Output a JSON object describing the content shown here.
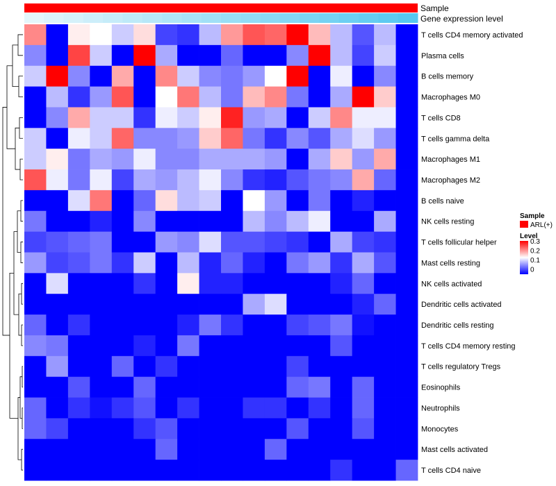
{
  "chart_data": {
    "type": "heatmap",
    "title": "",
    "annotations": {
      "sample_label": "Sample",
      "gene_expression_label": "Gene expression level",
      "sample_color": "#ff0000",
      "gene_expression_values": [
        0.05,
        0.1,
        0.15,
        0.2,
        0.25,
        0.3,
        0.35,
        0.4,
        0.45,
        0.5,
        0.55,
        0.6,
        0.65,
        0.7,
        0.75,
        0.8,
        0.85,
        0.9,
        0.95,
        1.0
      ]
    },
    "rows": [
      "T cells CD4 memory activated",
      "Plasma cells",
      "B cells memory",
      "Macrophages M0",
      "T cells CD8",
      "T cells gamma delta",
      "Macrophages M1",
      "Macrophages M2",
      "B cells naive",
      "NK cells resting",
      "T cells follicular helper",
      "Mast cells resting",
      "NK cells activated",
      "Dendritic cells activated",
      "Dendritic cells resting",
      "T cells CD4 memory resting",
      "T cells regulatory  Tregs",
      "Eosinophils",
      "Neutrophils",
      "Monocytes",
      "Mast cells activated",
      "T cells CD4 naive"
    ],
    "columns": 18,
    "values": [
      [
        0.22,
        0.0,
        0.16,
        0.15,
        0.12,
        0.17,
        0.04,
        0.03,
        0.11,
        0.21,
        0.25,
        0.24,
        0.3,
        0.19,
        0.11,
        0.05,
        0.11,
        0.0
      ],
      [
        0.08,
        0.0,
        0.26,
        0.12,
        0.0,
        0.3,
        0.1,
        0.0,
        0.0,
        0.06,
        0.0,
        0.0,
        0.08,
        0.3,
        0.11,
        0.04,
        0.12,
        0.0
      ],
      [
        0.12,
        0.3,
        0.08,
        0.0,
        0.2,
        0.0,
        0.22,
        0.12,
        0.08,
        0.07,
        0.09,
        0.15,
        0.3,
        0.0,
        0.14,
        0.0,
        0.08,
        0.0
      ],
      [
        0.0,
        0.11,
        0.03,
        0.09,
        0.25,
        0.0,
        0.15,
        0.23,
        0.11,
        0.07,
        0.19,
        0.22,
        0.07,
        0.0,
        0.1,
        0.3,
        0.18,
        0.0
      ],
      [
        0.0,
        0.08,
        0.2,
        0.12,
        0.12,
        0.03,
        0.14,
        0.12,
        0.16,
        0.28,
        0.09,
        0.1,
        0.0,
        0.12,
        0.22,
        0.14,
        0.14,
        0.0
      ],
      [
        0.12,
        0.0,
        0.14,
        0.12,
        0.24,
        0.08,
        0.08,
        0.09,
        0.18,
        0.24,
        0.07,
        0.03,
        0.08,
        0.05,
        0.1,
        0.13,
        0.09,
        0.0
      ],
      [
        0.12,
        0.16,
        0.07,
        0.1,
        0.09,
        0.14,
        0.08,
        0.08,
        0.1,
        0.1,
        0.1,
        0.09,
        0.0,
        0.1,
        0.18,
        0.09,
        0.2,
        0.0
      ],
      [
        0.25,
        0.14,
        0.07,
        0.14,
        0.04,
        0.1,
        0.09,
        0.11,
        0.14,
        0.08,
        0.03,
        0.02,
        0.05,
        0.07,
        0.08,
        0.2,
        0.06,
        0.0
      ],
      [
        0.0,
        0.0,
        0.13,
        0.23,
        0.0,
        0.06,
        0.17,
        0.11,
        0.12,
        0.0,
        0.15,
        0.09,
        0.0,
        0.07,
        0.0,
        0.02,
        0.0,
        0.0
      ],
      [
        0.07,
        0.0,
        0.0,
        0.02,
        0.0,
        0.08,
        0.0,
        0.0,
        0.0,
        0.0,
        0.11,
        0.08,
        0.11,
        0.14,
        0.0,
        0.0,
        0.1,
        0.0
      ],
      [
        0.04,
        0.05,
        0.06,
        0.07,
        0.0,
        0.0,
        0.09,
        0.08,
        0.13,
        0.05,
        0.05,
        0.04,
        0.03,
        0.0,
        0.1,
        0.04,
        0.03,
        0.0
      ],
      [
        0.09,
        0.04,
        0.05,
        0.07,
        0.03,
        0.12,
        0.0,
        0.11,
        0.02,
        0.06,
        0.02,
        0.0,
        0.07,
        0.09,
        0.03,
        0.1,
        0.05,
        0.0
      ],
      [
        0.0,
        0.13,
        0.0,
        0.0,
        0.0,
        0.03,
        0.0,
        0.16,
        0.02,
        0.02,
        0.0,
        0.0,
        0.0,
        0.0,
        0.02,
        0.06,
        0.0,
        0.0
      ],
      [
        0.0,
        0.0,
        0.0,
        0.0,
        0.0,
        0.0,
        0.0,
        0.0,
        0.0,
        0.0,
        0.1,
        0.13,
        0.0,
        0.0,
        0.0,
        0.02,
        0.06,
        0.0
      ],
      [
        0.06,
        0.0,
        0.03,
        0.0,
        0.0,
        0.0,
        0.0,
        0.02,
        0.07,
        0.03,
        0.0,
        0.0,
        0.04,
        0.05,
        0.07,
        0.01,
        0.0,
        0.0
      ],
      [
        0.08,
        0.07,
        0.0,
        0.0,
        0.0,
        0.02,
        0.0,
        0.07,
        0.0,
        0.0,
        0.0,
        0.0,
        0.0,
        0.0,
        0.05,
        0.0,
        0.0,
        0.0
      ],
      [
        0.0,
        0.09,
        0.0,
        0.0,
        0.06,
        0.0,
        0.03,
        0.0,
        0.0,
        0.0,
        0.0,
        0.0,
        0.04,
        0.0,
        0.0,
        0.0,
        0.0,
        0.0
      ],
      [
        0.0,
        0.0,
        0.05,
        0.0,
        0.0,
        0.06,
        0.0,
        0.0,
        0.0,
        0.0,
        0.0,
        0.0,
        0.06,
        0.07,
        0.0,
        0.06,
        0.0,
        0.0
      ],
      [
        0.06,
        0.0,
        0.03,
        0.01,
        0.03,
        0.05,
        0.0,
        0.03,
        0.0,
        0.0,
        0.03,
        0.03,
        0.0,
        0.03,
        0.0,
        0.06,
        0.0,
        0.0
      ],
      [
        0.06,
        0.04,
        0.0,
        0.0,
        0.0,
        0.03,
        0.05,
        0.0,
        0.0,
        0.0,
        0.0,
        0.0,
        0.05,
        0.0,
        0.0,
        0.05,
        0.0,
        0.0
      ],
      [
        0.0,
        0.0,
        0.0,
        0.0,
        0.0,
        0.0,
        0.06,
        0.0,
        0.0,
        0.0,
        0.0,
        0.06,
        0.0,
        0.0,
        0.0,
        0.0,
        0.0,
        0.0
      ],
      [
        0.0,
        0.0,
        0.0,
        0.0,
        0.0,
        0.0,
        0.0,
        0.0,
        0.0,
        0.0,
        0.0,
        0.0,
        0.0,
        0.0,
        0.03,
        0.0,
        0.0,
        0.06
      ]
    ],
    "color_scale": {
      "min": 0,
      "mid": 0.15,
      "max": 0.3,
      "low_color": "#0000ff",
      "mid_color": "#ffffff",
      "high_color": "#ff0000"
    },
    "legend": {
      "sample_title": "Sample",
      "sample_entry": "ARL(+)",
      "level_title": "Level",
      "level_ticks": [
        "0.3",
        "0.2",
        "0.1",
        "0"
      ],
      "placement": "right"
    },
    "dendrogram": "rows"
  }
}
